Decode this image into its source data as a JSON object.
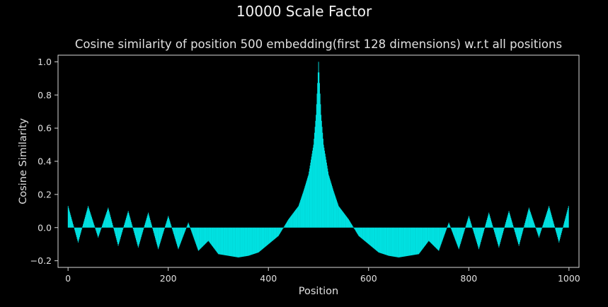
{
  "suptitle": "10000 Scale Factor",
  "chart_data": {
    "type": "bar",
    "title": "Cosine similarity of position 500 embedding(first 128 dimensions)  w.r.t all positions",
    "xlabel": "Position",
    "ylabel": "Cosine Similarity",
    "xlim": [
      -20,
      1020
    ],
    "ylim": [
      -0.24,
      1.04
    ],
    "xticks": [
      0,
      200,
      400,
      600,
      800,
      1000
    ],
    "yticks": [
      -0.2,
      0.0,
      0.2,
      0.4,
      0.6,
      0.8,
      1.0
    ],
    "ytick_labels": [
      "−0.2",
      "0.0",
      "0.2",
      "0.4",
      "0.6",
      "0.8",
      "1.0"
    ],
    "bar_color": "#00e5e5",
    "background": "#000000",
    "grid": false,
    "n_points": 1000,
    "series": [
      {
        "x": [
          0,
          20,
          40,
          60,
          80,
          100,
          120,
          140,
          160,
          180,
          200,
          220,
          240,
          260,
          280,
          300,
          320,
          340,
          360,
          380,
          400,
          420,
          440,
          460,
          470,
          480,
          490,
          495,
          500,
          505,
          510,
          520,
          530,
          540,
          560,
          580,
          600,
          620,
          640,
          660,
          680,
          700,
          720,
          740,
          760,
          780,
          800,
          820,
          840,
          860,
          880,
          900,
          920,
          940,
          960,
          980,
          999
        ],
        "values": [
          0.13,
          -0.09,
          0.13,
          -0.06,
          0.12,
          -0.11,
          0.1,
          -0.12,
          0.09,
          -0.13,
          0.07,
          -0.13,
          0.03,
          -0.14,
          -0.08,
          -0.16,
          -0.17,
          -0.18,
          -0.17,
          -0.15,
          -0.1,
          -0.05,
          0.05,
          0.13,
          0.22,
          0.32,
          0.5,
          0.68,
          1.0,
          0.68,
          0.5,
          0.32,
          0.22,
          0.13,
          0.05,
          -0.05,
          -0.1,
          -0.15,
          -0.17,
          -0.18,
          -0.17,
          -0.16,
          -0.08,
          -0.14,
          0.03,
          -0.13,
          0.07,
          -0.13,
          0.09,
          -0.12,
          0.1,
          -0.11,
          0.12,
          -0.06,
          0.13,
          -0.09,
          0.13
        ]
      }
    ]
  }
}
